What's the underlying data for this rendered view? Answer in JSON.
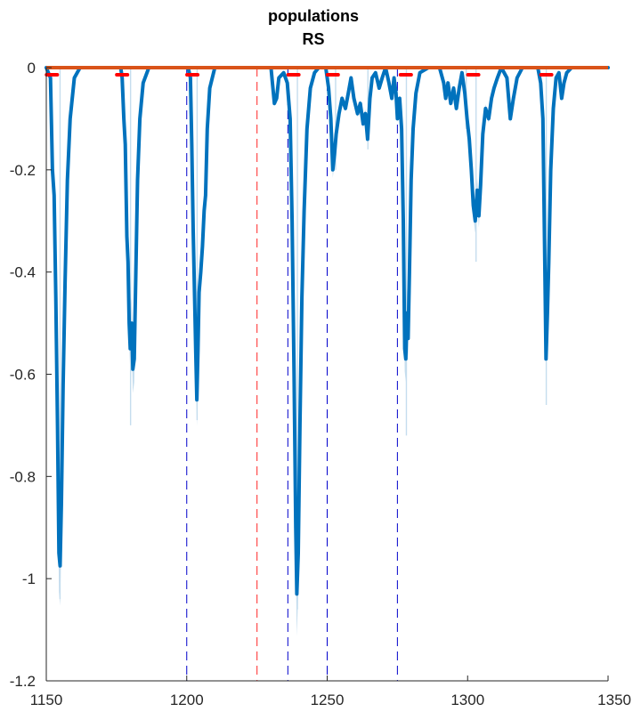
{
  "chart_data": {
    "type": "line",
    "title": "populations",
    "subtitle": "RS",
    "xlabel": "",
    "ylabel": "",
    "xlim": [
      1150,
      1350
    ],
    "ylim": [
      -1.2,
      0
    ],
    "xticks": [
      "1150",
      "1200",
      "1250",
      "1300",
      "1350"
    ],
    "yticks": [
      "0",
      "-0.2",
      "-0.4",
      "-0.6",
      "-0.8",
      "-1",
      "-1.2"
    ],
    "grid": false,
    "legend": "none",
    "colors": {
      "mean_line": "#0072BD",
      "shade": "#C5DDEE",
      "baseline": "#D95319",
      "markers": "#FF0000",
      "vline_blue": "#0000CC",
      "vline_red": "#FF5555"
    },
    "series": [
      {
        "points": [
          [
            1150,
            0
          ],
          [
            1151.5,
            -0.02
          ],
          [
            1152.2,
            -0.2
          ],
          [
            1152.8,
            -0.25
          ],
          [
            1153.4,
            -0.45
          ],
          [
            1154.0,
            -0.7
          ],
          [
            1154.5,
            -0.95
          ],
          [
            1154.9,
            -0.975
          ],
          [
            1155.4,
            -0.85
          ],
          [
            1156.0,
            -0.62
          ],
          [
            1156.7,
            -0.42
          ],
          [
            1157.5,
            -0.22
          ],
          [
            1158.5,
            -0.1
          ],
          [
            1160,
            -0.02
          ],
          [
            1162,
            0
          ],
          [
            1176.5,
            0
          ],
          [
            1177.0,
            -0.02
          ],
          [
            1177.6,
            -0.1
          ],
          [
            1178.1,
            -0.15
          ],
          [
            1178.7,
            -0.33
          ],
          [
            1179.1,
            -0.38
          ],
          [
            1179.5,
            -0.5
          ],
          [
            1179.9,
            -0.55
          ],
          [
            1180.4,
            -0.5
          ],
          [
            1180.8,
            -0.59
          ],
          [
            1181.3,
            -0.57
          ],
          [
            1181.9,
            -0.4
          ],
          [
            1182.5,
            -0.22
          ],
          [
            1183.3,
            -0.1
          ],
          [
            1184.5,
            -0.03
          ],
          [
            1186.5,
            0
          ],
          [
            1200.5,
            0
          ],
          [
            1201.3,
            -0.02
          ],
          [
            1201.8,
            -0.15
          ],
          [
            1202.3,
            -0.32
          ],
          [
            1202.8,
            -0.45
          ],
          [
            1203.2,
            -0.55
          ],
          [
            1203.6,
            -0.65
          ],
          [
            1204.0,
            -0.55
          ],
          [
            1204.4,
            -0.44
          ],
          [
            1205.0,
            -0.4
          ],
          [
            1205.6,
            -0.35
          ],
          [
            1206.2,
            -0.28
          ],
          [
            1206.7,
            -0.25
          ],
          [
            1207.3,
            -0.12
          ],
          [
            1208.2,
            -0.04
          ],
          [
            1210,
            0
          ],
          [
            1230,
            0
          ],
          [
            1230.5,
            -0.03
          ],
          [
            1231.2,
            -0.07
          ],
          [
            1232.0,
            -0.06
          ],
          [
            1232.8,
            -0.02
          ],
          [
            1234.5,
            -0.01
          ],
          [
            1235.8,
            -0.03
          ],
          [
            1236.8,
            -0.1
          ],
          [
            1237.5,
            -0.3
          ],
          [
            1238.2,
            -0.6
          ],
          [
            1238.8,
            -0.9
          ],
          [
            1239.2,
            -1.03
          ],
          [
            1239.7,
            -0.95
          ],
          [
            1240.3,
            -0.7
          ],
          [
            1241.0,
            -0.45
          ],
          [
            1241.8,
            -0.28
          ],
          [
            1242.8,
            -0.12
          ],
          [
            1244.0,
            -0.04
          ],
          [
            1245.5,
            -0.01
          ],
          [
            1247,
            0
          ],
          [
            1249.5,
            0
          ],
          [
            1250.5,
            -0.04
          ],
          [
            1251.3,
            -0.1
          ],
          [
            1252.0,
            -0.2
          ],
          [
            1252.6,
            -0.17
          ],
          [
            1253.2,
            -0.13
          ],
          [
            1254.2,
            -0.09
          ],
          [
            1255.3,
            -0.06
          ],
          [
            1256.5,
            -0.08
          ],
          [
            1257.5,
            -0.05
          ],
          [
            1258.5,
            -0.02
          ],
          [
            1259.5,
            -0.06
          ],
          [
            1260.8,
            -0.09
          ],
          [
            1261.8,
            -0.07
          ],
          [
            1262.8,
            -0.11
          ],
          [
            1263.6,
            -0.09
          ],
          [
            1264.4,
            -0.14
          ],
          [
            1265.2,
            -0.06
          ],
          [
            1266.0,
            -0.02
          ],
          [
            1267.2,
            -0.01
          ],
          [
            1268.5,
            -0.04
          ],
          [
            1269.6,
            -0.02
          ],
          [
            1270.8,
            0
          ],
          [
            1272.0,
            -0.03
          ],
          [
            1273.0,
            -0.06
          ],
          [
            1273.8,
            -0.02
          ],
          [
            1274.5,
            -0.05
          ],
          [
            1275.0,
            -0.1
          ],
          [
            1275.8,
            -0.06
          ],
          [
            1276.5,
            -0.12
          ],
          [
            1277.1,
            -0.3
          ],
          [
            1277.6,
            -0.55
          ],
          [
            1278.0,
            -0.57
          ],
          [
            1278.4,
            -0.48
          ],
          [
            1278.8,
            -0.53
          ],
          [
            1279.3,
            -0.4
          ],
          [
            1279.9,
            -0.22
          ],
          [
            1280.6,
            -0.12
          ],
          [
            1281.6,
            -0.05
          ],
          [
            1283,
            -0.01
          ],
          [
            1286,
            0
          ],
          [
            1290,
            0
          ],
          [
            1291.5,
            -0.03
          ],
          [
            1292.2,
            -0.06
          ],
          [
            1293.0,
            -0.03
          ],
          [
            1294.0,
            -0.07
          ],
          [
            1295.0,
            -0.04
          ],
          [
            1296.0,
            -0.08
          ],
          [
            1297.0,
            -0.04
          ],
          [
            1298.0,
            -0.01
          ],
          [
            1299.0,
            -0.05
          ],
          [
            1299.8,
            -0.1
          ],
          [
            1300.6,
            -0.14
          ],
          [
            1301.3,
            -0.2
          ],
          [
            1302.0,
            -0.27
          ],
          [
            1302.7,
            -0.3
          ],
          [
            1303.4,
            -0.24
          ],
          [
            1304.0,
            -0.29
          ],
          [
            1304.6,
            -0.23
          ],
          [
            1305.4,
            -0.13
          ],
          [
            1306.4,
            -0.08
          ],
          [
            1307.5,
            -0.1
          ],
          [
            1308.5,
            -0.06
          ],
          [
            1309.4,
            -0.04
          ],
          [
            1310.6,
            -0.02
          ],
          [
            1312.0,
            0
          ],
          [
            1314.0,
            -0.02
          ],
          [
            1315.2,
            -0.1
          ],
          [
            1316.3,
            -0.06
          ],
          [
            1317.6,
            -0.02
          ],
          [
            1319.5,
            0
          ],
          [
            1325,
            0
          ],
          [
            1326.0,
            -0.03
          ],
          [
            1326.8,
            -0.1
          ],
          [
            1327.4,
            -0.35
          ],
          [
            1327.9,
            -0.57
          ],
          [
            1328.4,
            -0.48
          ],
          [
            1328.9,
            -0.38
          ],
          [
            1329.6,
            -0.2
          ],
          [
            1330.5,
            -0.08
          ],
          [
            1331.5,
            -0.02
          ],
          [
            1332.5,
            -0.01
          ],
          [
            1333.5,
            -0.06
          ],
          [
            1334.3,
            -0.03
          ],
          [
            1335.3,
            -0.01
          ],
          [
            1337,
            0
          ],
          [
            1350,
            0
          ]
        ]
      }
    ],
    "baseline": {
      "y": 0
    },
    "shade_spikes": [
      [
        1154.9,
        -1.04
      ],
      [
        1180.0,
        -0.7
      ],
      [
        1203.7,
        -0.69
      ],
      [
        1239.4,
        -1.06
      ],
      [
        1278.2,
        -0.72
      ],
      [
        1303.0,
        -0.38
      ],
      [
        1328.0,
        -0.66
      ],
      [
        1264.5,
        -0.16
      ],
      [
        1253.0,
        -0.2
      ],
      [
        1299.5,
        -0.12
      ]
    ],
    "marker_x": [
      1152,
      1177,
      1202,
      1238,
      1252,
      1278,
      1302,
      1328
    ],
    "vlines_blue": [
      1200,
      1236,
      1250,
      1275
    ],
    "vlines_red": [
      1225
    ]
  }
}
